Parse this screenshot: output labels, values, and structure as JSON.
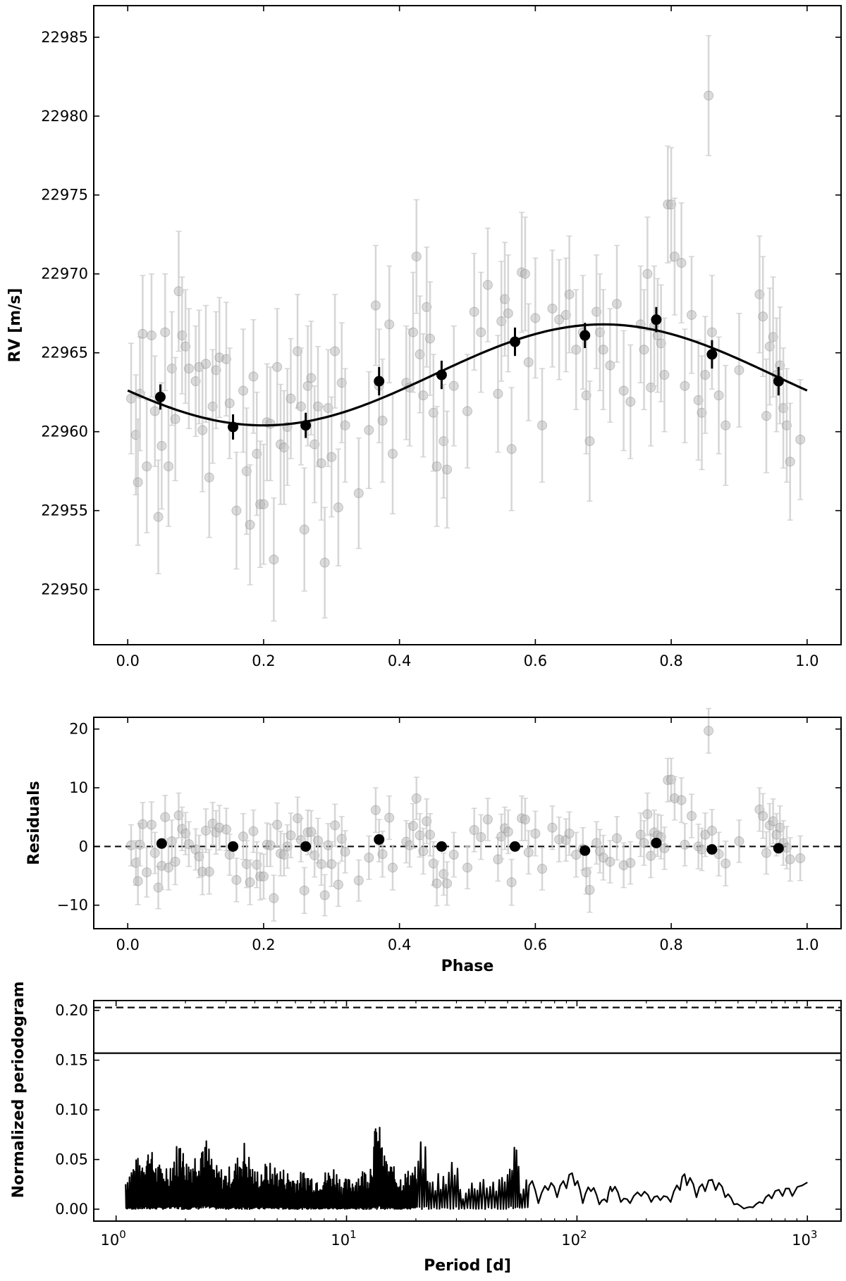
{
  "chart_data": [
    {
      "type": "scatter",
      "panel": "rv",
      "xlabel": "",
      "ylabel": "RV [m/s]",
      "xlim": [
        -0.05,
        1.05
      ],
      "ylim": [
        22946.5,
        22987
      ],
      "xticks": [
        0.0,
        0.2,
        0.4,
        0.6,
        0.8,
        1.0
      ],
      "xtick_labels": [
        "0.0",
        "0.2",
        "0.4",
        "0.6",
        "0.8",
        "1.0"
      ],
      "yticks": [
        22950,
        22955,
        22960,
        22965,
        22970,
        22975,
        22980,
        22985
      ],
      "ytick_labels": [
        "22950",
        "22955",
        "22960",
        "22965",
        "22970",
        "22975",
        "22980",
        "22985"
      ],
      "model": {
        "offset": 22963.6,
        "amplitude": 3.2,
        "phase_of_max": 0.7
      },
      "binned": {
        "x": [
          0.048,
          0.155,
          0.262,
          0.37,
          0.462,
          0.57,
          0.673,
          0.778,
          0.86,
          0.958
        ],
        "y": [
          22962.2,
          22960.3,
          22960.4,
          22963.2,
          22963.6,
          22965.7,
          22966.1,
          22967.1,
          22964.9,
          22963.2
        ],
        "err": [
          0.8,
          0.8,
          0.8,
          0.9,
          0.9,
          0.9,
          0.8,
          0.8,
          0.9,
          0.9
        ]
      },
      "raw": {
        "x": [
          0.005,
          0.012,
          0.015,
          0.018,
          0.022,
          0.028,
          0.035,
          0.04,
          0.045,
          0.05,
          0.055,
          0.06,
          0.065,
          0.07,
          0.075,
          0.08,
          0.085,
          0.09,
          0.1,
          0.105,
          0.11,
          0.115,
          0.12,
          0.125,
          0.13,
          0.135,
          0.145,
          0.15,
          0.16,
          0.17,
          0.175,
          0.18,
          0.185,
          0.19,
          0.195,
          0.2,
          0.205,
          0.21,
          0.215,
          0.22,
          0.225,
          0.23,
          0.235,
          0.24,
          0.25,
          0.255,
          0.26,
          0.265,
          0.27,
          0.275,
          0.28,
          0.285,
          0.29,
          0.295,
          0.3,
          0.305,
          0.31,
          0.315,
          0.32,
          0.34,
          0.355,
          0.365,
          0.37,
          0.375,
          0.385,
          0.39,
          0.41,
          0.415,
          0.42,
          0.425,
          0.43,
          0.435,
          0.44,
          0.445,
          0.45,
          0.455,
          0.465,
          0.47,
          0.48,
          0.5,
          0.51,
          0.52,
          0.53,
          0.545,
          0.55,
          0.555,
          0.56,
          0.565,
          0.58,
          0.585,
          0.59,
          0.6,
          0.61,
          0.625,
          0.635,
          0.645,
          0.65,
          0.66,
          0.67,
          0.675,
          0.68,
          0.69,
          0.695,
          0.7,
          0.71,
          0.72,
          0.73,
          0.74,
          0.755,
          0.76,
          0.765,
          0.77,
          0.775,
          0.78,
          0.785,
          0.79,
          0.795,
          0.8,
          0.805,
          0.815,
          0.82,
          0.83,
          0.84,
          0.845,
          0.85,
          0.855,
          0.86,
          0.87,
          0.88,
          0.9,
          0.93,
          0.935,
          0.94,
          0.945,
          0.95,
          0.955,
          0.96,
          0.965,
          0.97,
          0.975,
          0.99
        ],
        "y": [
          22962.1,
          22959.8,
          22956.8,
          22962.4,
          22966.2,
          22957.8,
          22966.1,
          22961.3,
          22954.6,
          22959.1,
          22966.3,
          22957.8,
          22964.0,
          22960.8,
          22968.9,
          22966.1,
          22965.4,
          22964.0,
          22963.2,
          22964.1,
          22960.1,
          22964.3,
          22957.1,
          22961.6,
          22963.9,
          22964.7,
          22964.6,
          22961.8,
          22955.0,
          22962.6,
          22957.5,
          22954.1,
          22963.5,
          22958.6,
          22955.4,
          22955.4,
          22960.6,
          22960.5,
          22951.9,
          22964.1,
          22959.2,
          22959.0,
          22960.3,
          22962.1,
          22965.1,
          22961.6,
          22953.8,
          22962.9,
          22963.4,
          22959.2,
          22961.6,
          22958.0,
          22951.7,
          22961.5,
          22958.4,
          22965.1,
          22955.2,
          22963.1,
          22960.4,
          22956.1,
          22960.1,
          22968.0,
          22962.9,
          22960.7,
          22966.8,
          22958.6,
          22963.1,
          22962.8,
          22966.3,
          22971.1,
          22964.9,
          22962.3,
          22967.9,
          22965.9,
          22961.2,
          22957.8,
          22959.4,
          22957.6,
          22962.9,
          22961.3,
          22967.6,
          22966.3,
          22969.3,
          22962.4,
          22967.0,
          22968.4,
          22967.5,
          22958.9,
          22970.1,
          22970.0,
          22964.4,
          22967.2,
          22960.4,
          22967.8,
          22967.1,
          22967.4,
          22968.7,
          22965.2,
          22966.3,
          22962.3,
          22959.4,
          22967.6,
          22966.3,
          22965.2,
          22964.2,
          22968.1,
          22962.6,
          22961.9,
          22966.8,
          22965.2,
          22970.0,
          22962.8,
          22966.7,
          22966.1,
          22965.6,
          22963.6,
          22974.4,
          22974.4,
          22971.1,
          22970.7,
          22962.9,
          22967.4,
          22962.0,
          22961.2,
          22963.6,
          22981.3,
          22966.3,
          22962.3,
          22960.4,
          22963.9,
          22968.7,
          22967.3,
          22961.0,
          22965.4,
          22966.0,
          22963.6,
          22964.2,
          22961.5,
          22960.4,
          22958.1,
          22959.5
        ],
        "err": [
          3.5,
          3.8,
          4.0,
          3.6,
          3.7,
          4.2,
          3.9,
          3.5,
          3.6,
          4.0,
          3.7,
          3.8,
          3.6,
          3.9,
          3.8,
          3.7,
          3.6,
          3.8,
          3.5,
          3.6,
          3.9,
          3.7,
          3.8,
          3.6,
          3.7,
          3.8,
          3.6,
          3.5,
          3.7,
          3.9,
          4.0,
          3.8,
          3.6,
          3.9,
          4.0,
          3.8,
          3.7,
          3.6,
          3.9,
          3.7,
          3.8,
          3.6,
          3.7,
          3.8,
          3.6,
          3.7,
          3.9,
          3.8,
          3.6,
          3.7,
          3.8,
          3.6,
          3.5,
          3.7,
          3.8,
          3.6,
          3.7,
          3.8,
          3.6,
          3.5,
          3.7,
          3.8,
          3.6,
          3.9,
          3.7,
          3.8,
          3.6,
          3.7,
          3.8,
          3.6,
          3.7,
          3.9,
          3.8,
          3.6,
          3.7,
          3.8,
          3.6,
          3.7,
          3.8,
          3.6,
          3.7,
          3.8,
          3.6,
          3.7,
          3.8,
          3.6,
          3.7,
          3.9,
          3.8,
          3.6,
          3.7,
          3.8,
          3.6,
          3.7,
          3.8,
          3.6,
          3.7,
          3.8,
          3.6,
          3.7,
          3.8,
          3.6,
          3.7,
          3.8,
          3.6,
          3.7,
          3.8,
          3.6,
          3.7,
          3.8,
          3.6,
          3.7,
          3.8,
          3.6,
          3.7,
          3.6,
          3.7,
          3.6,
          3.7,
          3.8,
          3.6,
          3.7,
          3.8,
          3.6,
          3.7,
          3.8,
          3.6,
          3.7,
          3.8,
          3.6,
          3.7,
          3.8,
          3.6,
          3.7,
          3.8,
          3.6,
          3.7,
          3.8,
          3.6,
          3.7,
          3.8
        ]
      }
    },
    {
      "type": "scatter",
      "panel": "residuals",
      "xlabel": "Phase",
      "ylabel": "Residuals",
      "xlim": [
        -0.05,
        1.05
      ],
      "ylim": [
        -14,
        22
      ],
      "xticks": [
        0.0,
        0.2,
        0.4,
        0.6,
        0.8,
        1.0
      ],
      "xtick_labels": [
        "0.0",
        "0.2",
        "0.4",
        "0.6",
        "0.8",
        "1.0"
      ],
      "yticks": [
        -10,
        0,
        10,
        20
      ],
      "ytick_labels": [
        "−10",
        "0",
        "10",
        "20"
      ],
      "zero_line": 0,
      "binned": {
        "x": [
          0.05,
          0.155,
          0.262,
          0.37,
          0.462,
          0.57,
          0.673,
          0.778,
          0.86,
          0.958
        ],
        "y": [
          0.5,
          0.0,
          0.0,
          1.2,
          0.0,
          0.0,
          -0.7,
          0.6,
          -0.5,
          -0.3
        ]
      },
      "raw": {
        "x": [
          0.005,
          0.012,
          0.015,
          0.018,
          0.022,
          0.028,
          0.035,
          0.04,
          0.045,
          0.05,
          0.055,
          0.06,
          0.065,
          0.07,
          0.075,
          0.08,
          0.085,
          0.09,
          0.1,
          0.105,
          0.11,
          0.115,
          0.12,
          0.125,
          0.13,
          0.135,
          0.145,
          0.15,
          0.16,
          0.17,
          0.175,
          0.18,
          0.185,
          0.19,
          0.195,
          0.2,
          0.205,
          0.21,
          0.215,
          0.22,
          0.225,
          0.23,
          0.235,
          0.24,
          0.25,
          0.255,
          0.26,
          0.265,
          0.27,
          0.275,
          0.28,
          0.285,
          0.29,
          0.295,
          0.3,
          0.305,
          0.31,
          0.315,
          0.32,
          0.34,
          0.355,
          0.365,
          0.37,
          0.375,
          0.385,
          0.39,
          0.41,
          0.415,
          0.42,
          0.425,
          0.43,
          0.435,
          0.44,
          0.445,
          0.45,
          0.455,
          0.465,
          0.47,
          0.48,
          0.5,
          0.51,
          0.52,
          0.53,
          0.545,
          0.55,
          0.555,
          0.56,
          0.565,
          0.58,
          0.585,
          0.59,
          0.6,
          0.61,
          0.625,
          0.635,
          0.645,
          0.65,
          0.66,
          0.67,
          0.675,
          0.68,
          0.69,
          0.695,
          0.7,
          0.71,
          0.72,
          0.73,
          0.74,
          0.755,
          0.76,
          0.765,
          0.77,
          0.775,
          0.78,
          0.785,
          0.79,
          0.795,
          0.8,
          0.805,
          0.815,
          0.82,
          0.83,
          0.84,
          0.845,
          0.85,
          0.855,
          0.86,
          0.87,
          0.88,
          0.9,
          0.93,
          0.935,
          0.94,
          0.945,
          0.95,
          0.955,
          0.96,
          0.965,
          0.97,
          0.975,
          0.99
        ],
        "y": [
          0.2,
          -2.8,
          -5.9,
          0.3,
          3.8,
          -4.4,
          3.7,
          -1.1,
          -7.0,
          -3.3,
          5.0,
          -3.6,
          0.9,
          -2.6,
          5.3,
          3.0,
          2.2,
          0.4,
          -0.5,
          -1.7,
          -4.3,
          2.7,
          -4.3,
          3.9,
          2.4,
          3.2,
          2.9,
          -1.4,
          -5.7,
          1.7,
          -3.0,
          -6.1,
          2.6,
          -3.1,
          -5.1,
          -5.1,
          0.3,
          0.2,
          -8.8,
          3.7,
          -1.2,
          -1.4,
          0.0,
          1.9,
          4.8,
          1.1,
          -7.5,
          2.4,
          2.5,
          -1.5,
          1.0,
          -3.0,
          -8.3,
          0.2,
          -3.0,
          3.6,
          -6.5,
          1.3,
          -0.9,
          -5.8,
          -1.9,
          6.2,
          1.0,
          -1.3,
          4.9,
          -3.6,
          0.8,
          0.2,
          3.5,
          8.2,
          1.9,
          -0.8,
          4.3,
          2.0,
          -2.9,
          -6.3,
          -4.7,
          -6.3,
          -1.4,
          -3.6,
          2.8,
          1.6,
          4.6,
          -2.2,
          1.7,
          3.1,
          2.5,
          -6.1,
          4.8,
          4.6,
          -1.0,
          2.2,
          -3.8,
          3.2,
          1.2,
          1.1,
          2.2,
          -1.4,
          -0.4,
          -4.4,
          -7.4,
          0.6,
          -0.8,
          -1.9,
          -2.6,
          1.4,
          -3.2,
          -2.8,
          2.0,
          0.6,
          5.5,
          -1.6,
          2.4,
          1.9,
          1.6,
          -0.3,
          11.3,
          11.4,
          8.2,
          7.9,
          0.3,
          5.2,
          0.0,
          -0.5,
          2.0,
          19.7,
          2.7,
          -1.3,
          -2.9,
          0.9,
          6.3,
          5.2,
          -1.1,
          3.6,
          4.3,
          2.0,
          3.2,
          0.6,
          -0.2,
          -2.2,
          -2.0
        ],
        "err": [
          3.5,
          3.8,
          4.0,
          3.6,
          3.7,
          4.2,
          3.9,
          3.5,
          3.6,
          4.0,
          3.7,
          3.8,
          3.6,
          3.9,
          3.8,
          3.7,
          3.6,
          3.8,
          3.5,
          3.6,
          3.9,
          3.7,
          3.8,
          3.6,
          3.7,
          3.8,
          3.6,
          3.5,
          3.7,
          3.9,
          4.0,
          3.8,
          3.6,
          3.9,
          4.0,
          3.8,
          3.7,
          3.6,
          3.9,
          3.7,
          3.8,
          3.6,
          3.7,
          3.8,
          3.6,
          3.7,
          3.9,
          3.8,
          3.6,
          3.7,
          3.8,
          3.6,
          3.5,
          3.7,
          3.8,
          3.6,
          3.7,
          3.8,
          3.6,
          3.5,
          3.7,
          3.8,
          3.6,
          3.9,
          3.7,
          3.8,
          3.6,
          3.7,
          3.8,
          3.6,
          3.7,
          3.9,
          3.8,
          3.6,
          3.7,
          3.8,
          3.6,
          3.7,
          3.8,
          3.6,
          3.7,
          3.8,
          3.6,
          3.7,
          3.8,
          3.6,
          3.7,
          3.9,
          3.8,
          3.6,
          3.7,
          3.8,
          3.6,
          3.7,
          3.8,
          3.6,
          3.7,
          3.8,
          3.6,
          3.7,
          3.8,
          3.6,
          3.7,
          3.8,
          3.6,
          3.7,
          3.8,
          3.6,
          3.7,
          3.8,
          3.6,
          3.7,
          3.8,
          3.6,
          3.7,
          3.6,
          3.7,
          3.6,
          3.7,
          3.8,
          3.6,
          3.7,
          3.8,
          3.6,
          3.7,
          3.8,
          3.6,
          3.7,
          3.8,
          3.6,
          3.7,
          3.8,
          3.6,
          3.7,
          3.8,
          3.6,
          3.7,
          3.8,
          3.6,
          3.7,
          3.8
        ]
      }
    },
    {
      "type": "line",
      "panel": "periodogram",
      "xlabel": "Period [d]",
      "ylabel": "Normalized periodogram",
      "xscale": "log",
      "xlim": [
        0.8,
        1400
      ],
      "ylim": [
        -0.012,
        0.21
      ],
      "xticks": [
        1,
        10,
        100,
        1000
      ],
      "xtick_labels": [
        {
          "base": "10",
          "exp": "0"
        },
        {
          "base": "10",
          "exp": "1"
        },
        {
          "base": "10",
          "exp": "2"
        },
        {
          "base": "10",
          "exp": "3"
        }
      ],
      "yticks": [
        0.0,
        0.05,
        0.1,
        0.15,
        0.2
      ],
      "ytick_labels": [
        "0.00",
        "0.05",
        "0.10",
        "0.15",
        "0.20"
      ],
      "thresholds": [
        {
          "style": "dashed",
          "value": 0.203
        },
        {
          "style": "solid",
          "value": 0.157
        }
      ],
      "x": [
        1.1,
        1.2,
        1.3,
        1.4,
        1.5,
        1.7,
        1.9,
        2.0,
        2.2,
        2.4,
        2.7,
        3.0,
        3.3,
        3.6,
        4.0,
        4.5,
        5.0,
        5.5,
        6.0,
        6.6,
        7.3,
        8.0,
        8.8,
        9.6,
        10.5,
        11.5,
        12.6,
        13.6,
        14.6,
        15.8,
        17.0,
        18.5,
        20.0,
        21.5,
        23.0,
        25.0,
        27.0,
        29.5,
        32.0,
        35.0,
        38.0,
        42.0,
        46.0,
        50.0,
        53.5,
        57.0,
        62.0,
        68.0,
        75.0,
        82.0,
        90.0,
        98.0,
        106.0,
        115.0,
        125.0,
        135.0,
        142.0,
        155.0,
        170.0,
        190.0,
        210.0,
        230.0,
        255.0,
        280.0,
        300.0,
        330.0,
        360.0,
        400.0,
        440.0,
        480.0,
        530.0,
        580.0,
        640.0,
        700.0,
        780.0,
        860.0,
        1000.0
      ],
      "y": [
        0.035,
        0.05,
        0.055,
        0.065,
        0.045,
        0.05,
        0.075,
        0.05,
        0.06,
        0.08,
        0.045,
        0.04,
        0.05,
        0.07,
        0.04,
        0.048,
        0.045,
        0.04,
        0.035,
        0.04,
        0.035,
        0.038,
        0.045,
        0.03,
        0.032,
        0.04,
        0.045,
        0.098,
        0.055,
        0.045,
        0.035,
        0.04,
        0.045,
        0.08,
        0.03,
        0.04,
        0.035,
        0.065,
        0.02,
        0.03,
        0.04,
        0.035,
        0.03,
        0.045,
        0.085,
        0.03,
        0.04,
        0.01,
        0.032,
        0.02,
        0.035,
        0.04,
        0.01,
        0.03,
        0.008,
        0.012,
        0.03,
        0.012,
        0.01,
        0.022,
        0.012,
        0.015,
        0.012,
        0.032,
        0.04,
        0.02,
        0.03,
        0.032,
        0.02,
        0.008,
        0.001,
        0.003,
        0.01,
        0.018,
        0.022,
        0.022,
        0.027
      ]
    }
  ]
}
